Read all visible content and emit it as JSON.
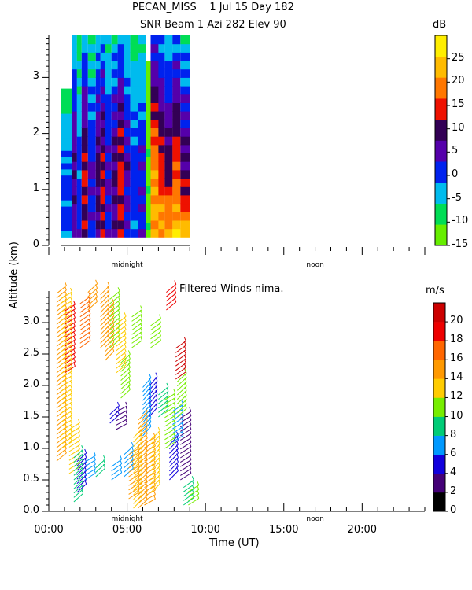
{
  "header": {
    "line1": "PECAN_MISS    1 Jul 15 Day 182",
    "line2": "SNR Beam 1 Azi 282 Elev 90"
  },
  "shared": {
    "ylabel": "Altitude (km)",
    "xlabel": "Time (UT)",
    "time_markers": [
      "midnight",
      "noon"
    ]
  },
  "chart_data": [
    {
      "type": "heatmap",
      "title": "SNR Beam 1 Azi 282 Elev 90",
      "xlim": [
        0,
        24
      ],
      "ylim": [
        0,
        3.75
      ],
      "yticks": [
        "0",
        "1",
        "2",
        "3"
      ],
      "colorbar": {
        "unit": "dB",
        "ticks": [
          "-15",
          "-10",
          "-5",
          "0",
          "5",
          "10",
          "15",
          "20",
          "25"
        ],
        "colors": [
          "#66ee00",
          "#00dd55",
          "#00bbee",
          "#0022ee",
          "#5500aa",
          "#330055",
          "#ee1100",
          "#ff7700",
          "#ffbb00",
          "#ffee00"
        ],
        "min": -15,
        "max": 30
      },
      "data_extent_hours": [
        0.8,
        9.0
      ],
      "data_extent_km": [
        0.15,
        3.75
      ],
      "columns": [
        {
          "t0": 0.8,
          "t1": 1.5,
          "top": 2.8,
          "base": 0,
          "low": 0
        },
        {
          "t0": 1.5,
          "t1": 1.8,
          "top": 3.75,
          "base": 8,
          "low": 5
        },
        {
          "t0": 1.8,
          "t1": 2.1,
          "top": 3.75,
          "base": 0,
          "low": 2
        },
        {
          "t0": 2.1,
          "t1": 2.5,
          "top": 3.75,
          "base": 12,
          "low": 10
        },
        {
          "t0": 2.5,
          "t1": 3.0,
          "top": 3.75,
          "base": 3,
          "low": 1
        },
        {
          "t0": 3.0,
          "t1": 3.3,
          "top": 3.75,
          "base": 9,
          "low": 6
        },
        {
          "t0": 3.3,
          "t1": 3.6,
          "top": 3.75,
          "base": 12,
          "low": 12
        },
        {
          "t0": 3.6,
          "t1": 4.0,
          "top": 3.75,
          "base": 4,
          "low": 2
        },
        {
          "t0": 4.0,
          "t1": 4.4,
          "top": 3.75,
          "base": 8,
          "low": 6
        },
        {
          "t0": 4.4,
          "t1": 4.8,
          "top": 3.75,
          "base": 14,
          "low": 12
        },
        {
          "t0": 4.8,
          "t1": 5.2,
          "top": 3.75,
          "base": 6,
          "low": 1
        },
        {
          "t0": 5.2,
          "t1": 5.7,
          "top": 3.75,
          "base": 1,
          "low": 0
        },
        {
          "t0": 5.7,
          "t1": 6.2,
          "top": 3.75,
          "base": 3,
          "low": 1
        },
        {
          "t0": 6.2,
          "t1": 6.5,
          "top": 3.3,
          "base": -12,
          "low": -12
        },
        {
          "t0": 6.5,
          "t1": 7.0,
          "top": 3.75,
          "base": 20,
          "low": 22
        },
        {
          "t0": 7.0,
          "t1": 7.4,
          "top": 3.75,
          "base": 14,
          "low": 24
        },
        {
          "t0": 7.4,
          "t1": 7.9,
          "top": 3.75,
          "base": 10,
          "low": 25
        },
        {
          "t0": 7.9,
          "t1": 8.4,
          "top": 3.75,
          "base": 16,
          "low": 27
        },
        {
          "t0": 8.4,
          "t1": 9.0,
          "top": 3.75,
          "base": 8,
          "low": 24
        }
      ]
    },
    {
      "type": "scatter",
      "title": "Filtered Winds nima.",
      "xlabel": "Time (UT)",
      "xlim": [
        0,
        24
      ],
      "ylim": [
        0,
        3.5
      ],
      "xticks": [
        "00:00",
        "05:00",
        "10:00",
        "15:00",
        "20:00"
      ],
      "yticks": [
        "0.0",
        "0.5",
        "1.0",
        "1.5",
        "2.0",
        "2.5",
        "3.0"
      ],
      "colorbar": {
        "unit": "m/s",
        "ticks": [
          "0",
          "2",
          "4",
          "6",
          "8",
          "10",
          "12",
          "14",
          "16",
          "18",
          "20"
        ],
        "colors": [
          "#000000",
          "#440077",
          "#1100dd",
          "#0099ff",
          "#00cc77",
          "#77ee00",
          "#ffcc00",
          "#ff9900",
          "#ff6600",
          "#ee0000",
          "#cc0000"
        ],
        "min": 0,
        "max": 22
      },
      "wind_profiles": [
        {
          "t": 0.5,
          "h0": 0.8,
          "h1": 3.5,
          "speed": 14
        },
        {
          "t": 0.8,
          "h0": 1.0,
          "h1": 3.4,
          "speed": 13
        },
        {
          "t": 1.0,
          "h0": 2.2,
          "h1": 3.2,
          "speed": 18
        },
        {
          "t": 1.3,
          "h0": 0.6,
          "h1": 1.3,
          "speed": 12
        },
        {
          "t": 1.6,
          "h0": 0.15,
          "h1": 0.9,
          "speed": 8
        },
        {
          "t": 1.8,
          "h0": 0.3,
          "h1": 0.8,
          "speed": 4
        },
        {
          "t": 2.0,
          "h0": 2.6,
          "h1": 3.3,
          "speed": 16
        },
        {
          "t": 2.3,
          "h0": 0.5,
          "h1": 0.8,
          "speed": 6
        },
        {
          "t": 2.5,
          "h0": 3.2,
          "h1": 3.5,
          "speed": 14
        },
        {
          "t": 3.0,
          "h0": 0.55,
          "h1": 0.75,
          "speed": 8
        },
        {
          "t": 3.3,
          "h0": 2.6,
          "h1": 3.5,
          "speed": 15
        },
        {
          "t": 3.6,
          "h0": 2.4,
          "h1": 3.2,
          "speed": 14
        },
        {
          "t": 3.9,
          "h0": 2.6,
          "h1": 3.4,
          "speed": 11
        },
        {
          "t": 4.0,
          "h0": 0.5,
          "h1": 0.75,
          "speed": 6
        },
        {
          "t": 4.3,
          "h0": 2.2,
          "h1": 3.0,
          "speed": 12
        },
        {
          "t": 4.6,
          "h0": 1.8,
          "h1": 2.4,
          "speed": 10
        },
        {
          "t": 4.8,
          "h0": 0.55,
          "h1": 0.95,
          "speed": 6
        },
        {
          "t": 3.9,
          "h0": 1.4,
          "h1": 1.6,
          "speed": 4
        },
        {
          "t": 4.3,
          "h0": 1.3,
          "h1": 1.6,
          "speed": 2
        },
        {
          "t": 5.1,
          "h0": 0.2,
          "h1": 0.9,
          "speed": 14
        },
        {
          "t": 5.3,
          "h0": 2.6,
          "h1": 3.1,
          "speed": 10
        },
        {
          "t": 5.4,
          "h0": 0.05,
          "h1": 1.2,
          "speed": 13
        },
        {
          "t": 5.7,
          "h0": 0.05,
          "h1": 1.5,
          "speed": 14
        },
        {
          "t": 6.0,
          "h0": 1.2,
          "h1": 2.0,
          "speed": 7
        },
        {
          "t": 6.1,
          "h0": 0.1,
          "h1": 1.1,
          "speed": 15
        },
        {
          "t": 6.4,
          "h0": 1.5,
          "h1": 2.0,
          "speed": 5
        },
        {
          "t": 6.5,
          "h0": 0.3,
          "h1": 1.2,
          "speed": 12
        },
        {
          "t": 6.5,
          "h0": 2.6,
          "h1": 3.0,
          "speed": 11
        },
        {
          "t": 7.0,
          "h0": 1.5,
          "h1": 1.9,
          "speed": 8
        },
        {
          "t": 7.4,
          "h0": 1.0,
          "h1": 1.8,
          "speed": 10
        },
        {
          "t": 7.5,
          "h0": 3.2,
          "h1": 3.5,
          "speed": 18
        },
        {
          "t": 7.7,
          "h0": 0.5,
          "h1": 1.1,
          "speed": 5
        },
        {
          "t": 7.9,
          "h0": 1.1,
          "h1": 1.6,
          "speed": 6
        },
        {
          "t": 8.1,
          "h0": 2.1,
          "h1": 2.6,
          "speed": 20
        },
        {
          "t": 8.2,
          "h0": 1.5,
          "h1": 2.1,
          "speed": 11
        },
        {
          "t": 8.4,
          "h0": 0.5,
          "h1": 1.5,
          "speed": 3
        },
        {
          "t": 8.6,
          "h0": 0.1,
          "h1": 0.4,
          "speed": 8
        },
        {
          "t": 8.9,
          "h0": 0.1,
          "h1": 0.35,
          "speed": 10
        }
      ]
    }
  ]
}
